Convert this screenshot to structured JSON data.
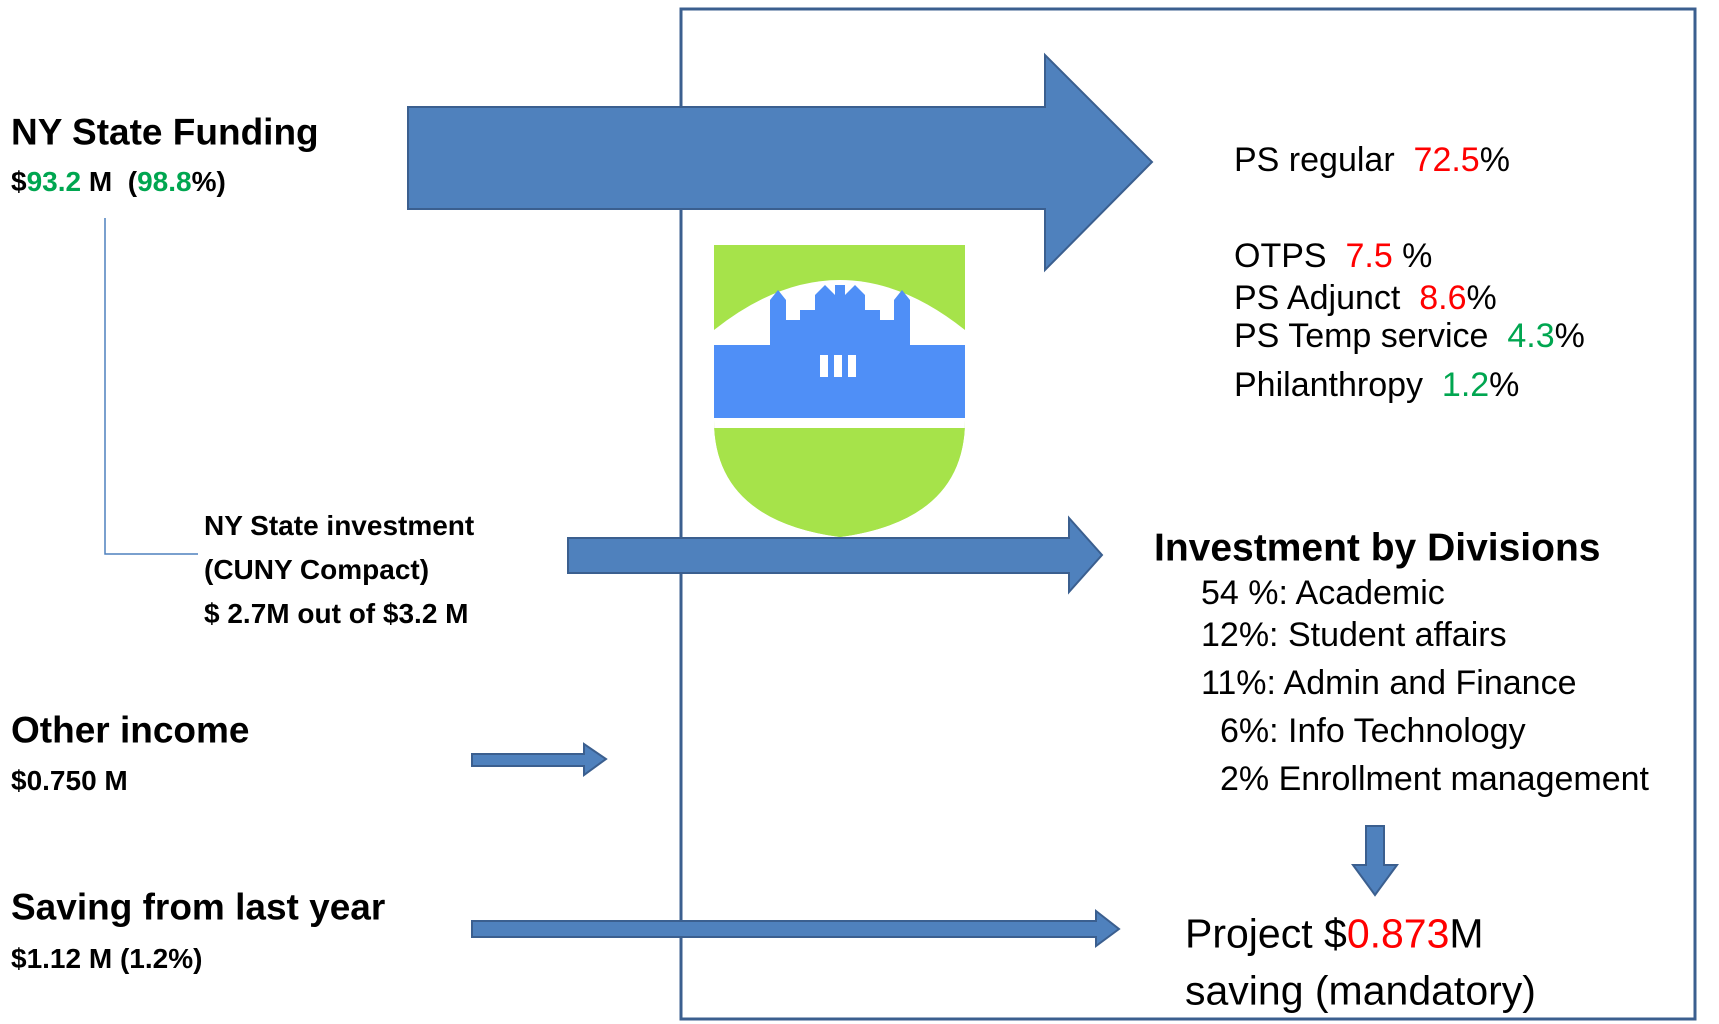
{
  "state_funding": {
    "title": "NY State Funding",
    "detail": [
      "$",
      "93.2",
      " M  (",
      "98.8",
      "%)"
    ]
  },
  "state_investment": {
    "lines": [
      "NY State investment",
      "(CUNY Compact)",
      "$ 2.7M out of $3.2 M"
    ]
  },
  "other_income": {
    "title": "Other income",
    "detail": "$0.750 M"
  },
  "saving_last_year": {
    "title": "Saving from last year",
    "detail": "$1.12 M (1.2%)"
  },
  "spending": [
    [
      "PS regular  ",
      "72.5",
      "%"
    ],
    [
      "OTPS  ",
      "7.5",
      " %"
    ],
    [
      "PS Adjunct  ",
      "8.6",
      "%"
    ],
    [
      "PS Temp service  ",
      "4.3",
      "%"
    ],
    [
      "Philanthropy  ",
      "1.2",
      "%"
    ]
  ],
  "divisions": {
    "title": "Investment by Divisions",
    "items": [
      "54 %: Academic",
      "12%: Student affairs",
      "11%: Admin and Finance",
      "6%: Info Technology",
      "2% Enrollment management"
    ]
  },
  "projection": {
    "line1": [
      "Project $",
      "0.873",
      "M"
    ],
    "line2": "saving (mandatory)"
  }
}
